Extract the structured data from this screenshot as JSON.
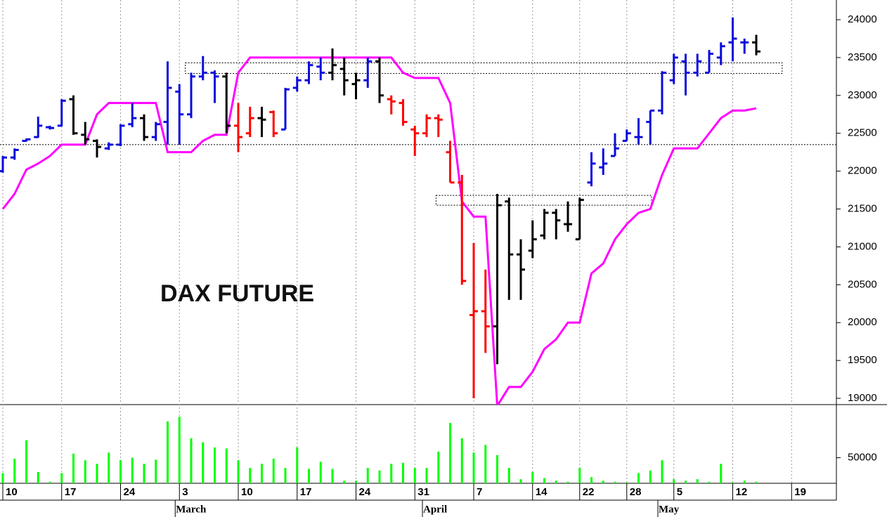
{
  "chart_data": {
    "type": "ohlc",
    "title": "DAX FUTURE",
    "categories": [
      "10",
      null,
      null,
      null,
      null,
      "17",
      null,
      null,
      null,
      null,
      "24",
      null,
      null,
      null,
      null,
      "3",
      null,
      null,
      null,
      null,
      "10",
      null,
      null,
      null,
      null,
      "17",
      null,
      null,
      null,
      null,
      "24",
      null,
      null,
      null,
      null,
      "31",
      null,
      null,
      null,
      null,
      "7",
      null,
      null,
      null,
      null,
      "14",
      null,
      null,
      null,
      "22",
      null,
      null,
      null,
      "28",
      null,
      null,
      null,
      "5",
      null,
      null,
      null,
      null,
      "12",
      null,
      null,
      null,
      null,
      "19",
      null,
      null,
      null
    ],
    "month_labels": [
      "March",
      "April",
      "May"
    ],
    "month_starts": [
      15,
      36,
      56
    ],
    "open": [
      22000,
      22180,
      22400,
      22450,
      22580,
      22600,
      22950,
      22480,
      22400,
      22300,
      22350,
      22620,
      22700,
      22450,
      22650,
      23050,
      22750,
      23250,
      23300,
      23250,
      22600,
      22500,
      22700,
      22780,
      22550,
      23100,
      23200,
      23380,
      23300,
      23350,
      23150,
      23200,
      23450,
      22950,
      22900,
      22550,
      22500,
      22700,
      22250,
      21850,
      20100,
      20150,
      19950,
      21600,
      20900,
      20950,
      21150,
      21450,
      21300,
      21100,
      21850,
      22050,
      22200,
      22400,
      22450,
      22650,
      22800,
      23200,
      23450,
      23300,
      23300,
      23500,
      23700,
      23700,
      23700,
      null,
      null,
      null,
      null,
      null,
      null
    ],
    "high": [
      22200,
      22300,
      22430,
      22720,
      22600,
      22950,
      23000,
      22650,
      22420,
      22380,
      22620,
      22900,
      22750,
      22650,
      23450,
      23150,
      23300,
      23520,
      23330,
      23300,
      22900,
      22850,
      22850,
      22800,
      23100,
      23250,
      23450,
      23500,
      23620,
      23500,
      23300,
      23500,
      23500,
      23000,
      22950,
      22600,
      22750,
      22750,
      22400,
      21950,
      21050,
      20700,
      21700,
      21650,
      21100,
      21350,
      21500,
      21500,
      21600,
      21650,
      22250,
      22300,
      22500,
      22550,
      22700,
      22800,
      23320,
      23550,
      23550,
      23550,
      23600,
      23700,
      24030,
      23750,
      23800,
      null,
      null,
      null,
      null,
      null,
      null
    ],
    "low": [
      21980,
      22150,
      22390,
      22440,
      22550,
      22590,
      22480,
      22350,
      22180,
      22280,
      22330,
      22580,
      22400,
      22400,
      22350,
      22350,
      22700,
      23200,
      22900,
      22500,
      22250,
      22450,
      22450,
      22450,
      22550,
      23050,
      23150,
      23200,
      23200,
      23000,
      22950,
      23100,
      22900,
      22750,
      22600,
      22200,
      22450,
      22450,
      21850,
      20500,
      19000,
      19600,
      19450,
      20300,
      20300,
      20850,
      21100,
      21100,
      21200,
      21100,
      21800,
      21950,
      22200,
      22400,
      22350,
      22350,
      22750,
      23150,
      23000,
      23250,
      23300,
      23400,
      23450,
      23550,
      23530,
      null,
      null,
      null,
      null,
      null,
      null
    ],
    "close": [
      22180,
      22280,
      22420,
      22600,
      22570,
      22930,
      22500,
      22420,
      22320,
      22350,
      22600,
      22700,
      22450,
      22620,
      23100,
      22750,
      23250,
      23300,
      23250,
      22600,
      22450,
      22700,
      22680,
      22500,
      23080,
      23200,
      23400,
      23300,
      23400,
      23200,
      23200,
      23450,
      23000,
      22920,
      22650,
      22500,
      22700,
      22680,
      21850,
      20550,
      20150,
      19950,
      21550,
      20900,
      20700,
      21100,
      21450,
      21350,
      21300,
      21620,
      22100,
      22100,
      22300,
      22500,
      22450,
      22800,
      23300,
      23500,
      23300,
      23450,
      23550,
      23650,
      23750,
      23700,
      23580,
      null,
      null,
      null,
      null,
      null,
      null
    ],
    "bar_colors": [
      "#0a0adc",
      "#0a0adc",
      "#0a0adc",
      "#0a0adc",
      "#0a0adc",
      "#0a0adc",
      "#000000",
      "#000000",
      "#000000",
      "#0a0adc",
      "#0a0adc",
      "#0a0adc",
      "#000000",
      "#0a0adc",
      "#0a0adc",
      "#0a0adc",
      "#0a0adc",
      "#0a0adc",
      "#0a0adc",
      "#000000",
      "#ff0000",
      "#ff0000",
      "#000000",
      "#ff0000",
      "#0a0adc",
      "#0a0adc",
      "#0a0adc",
      "#0a0adc",
      "#000000",
      "#000000",
      "#000000",
      "#0a0adc",
      "#000000",
      "#ff0000",
      "#ff0000",
      "#ff0000",
      "#ff0000",
      "#ff0000",
      "#ff0000",
      "#ff0000",
      "#ff0000",
      "#ff0000",
      "#000000",
      "#000000",
      "#000000",
      "#000000",
      "#000000",
      "#000000",
      "#000000",
      "#000000",
      "#0a0adc",
      "#0a0adc",
      "#0a0adc",
      "#0a0adc",
      "#0a0adc",
      "#0a0adc",
      "#0a0adc",
      "#0a0adc",
      "#0a0adc",
      "#0a0adc",
      "#0a0adc",
      "#0a0adc",
      "#0a0adc",
      "#0a0adc",
      "#000000",
      null,
      null,
      null,
      null,
      null,
      null
    ],
    "stop_line": {
      "color": "#ff00ff",
      "values": [
        21500,
        21700,
        22020,
        22100,
        22200,
        22350,
        22350,
        22350,
        22750,
        22900,
        22900,
        22900,
        22900,
        22900,
        22250,
        22250,
        22250,
        22400,
        22480,
        22480,
        23300,
        23500,
        23500,
        23500,
        23500,
        23500,
        23500,
        23500,
        23500,
        23500,
        23500,
        23500,
        23500,
        23500,
        23300,
        23230,
        23230,
        23230,
        22900,
        21600,
        21400,
        21400,
        18900,
        19150,
        19150,
        19350,
        19650,
        19780,
        20000,
        20000,
        20650,
        20780,
        21100,
        21300,
        21450,
        21500,
        21950,
        22300,
        22300,
        22300,
        22500,
        22700,
        22800,
        22800,
        22830,
        null,
        null,
        null,
        null,
        null,
        null
      ]
    },
    "ylim": [
      18917,
      24260
    ],
    "yticks": [
      19000,
      19500,
      20000,
      20500,
      21000,
      21500,
      22000,
      22500,
      23000,
      23500,
      24000
    ],
    "levels": [
      22350
    ],
    "zones": [
      {
        "low": 23290,
        "high": 23430,
        "span": [
          15.5,
          66.2
        ]
      },
      {
        "low": 21550,
        "high": 21680,
        "span": [
          36.8,
          55.1
        ]
      }
    ],
    "volume": {
      "type": "bar",
      "color": "#00ff00",
      "ylim": [
        0,
        151000
      ],
      "yticks": [
        50000
      ],
      "values": [
        20000,
        48000,
        84000,
        22000,
        3000,
        20000,
        58000,
        45000,
        38000,
        60000,
        45000,
        50000,
        38000,
        46000,
        121000,
        130000,
        88000,
        80000,
        70000,
        68000,
        45000,
        30000,
        38000,
        48000,
        30000,
        70000,
        28000,
        42000,
        28000,
        5000,
        5000,
        30000,
        25000,
        38000,
        40000,
        30000,
        30000,
        62000,
        118000,
        88000,
        60000,
        75000,
        55000,
        30000,
        8000,
        22000,
        10000,
        5000,
        3000,
        30000,
        12000,
        5000,
        3000,
        2000,
        20000,
        25000,
        45000,
        8000,
        5000,
        8000,
        3000,
        38000,
        2000,
        5000,
        3000,
        null,
        null,
        null,
        null,
        null,
        null
      ]
    }
  }
}
